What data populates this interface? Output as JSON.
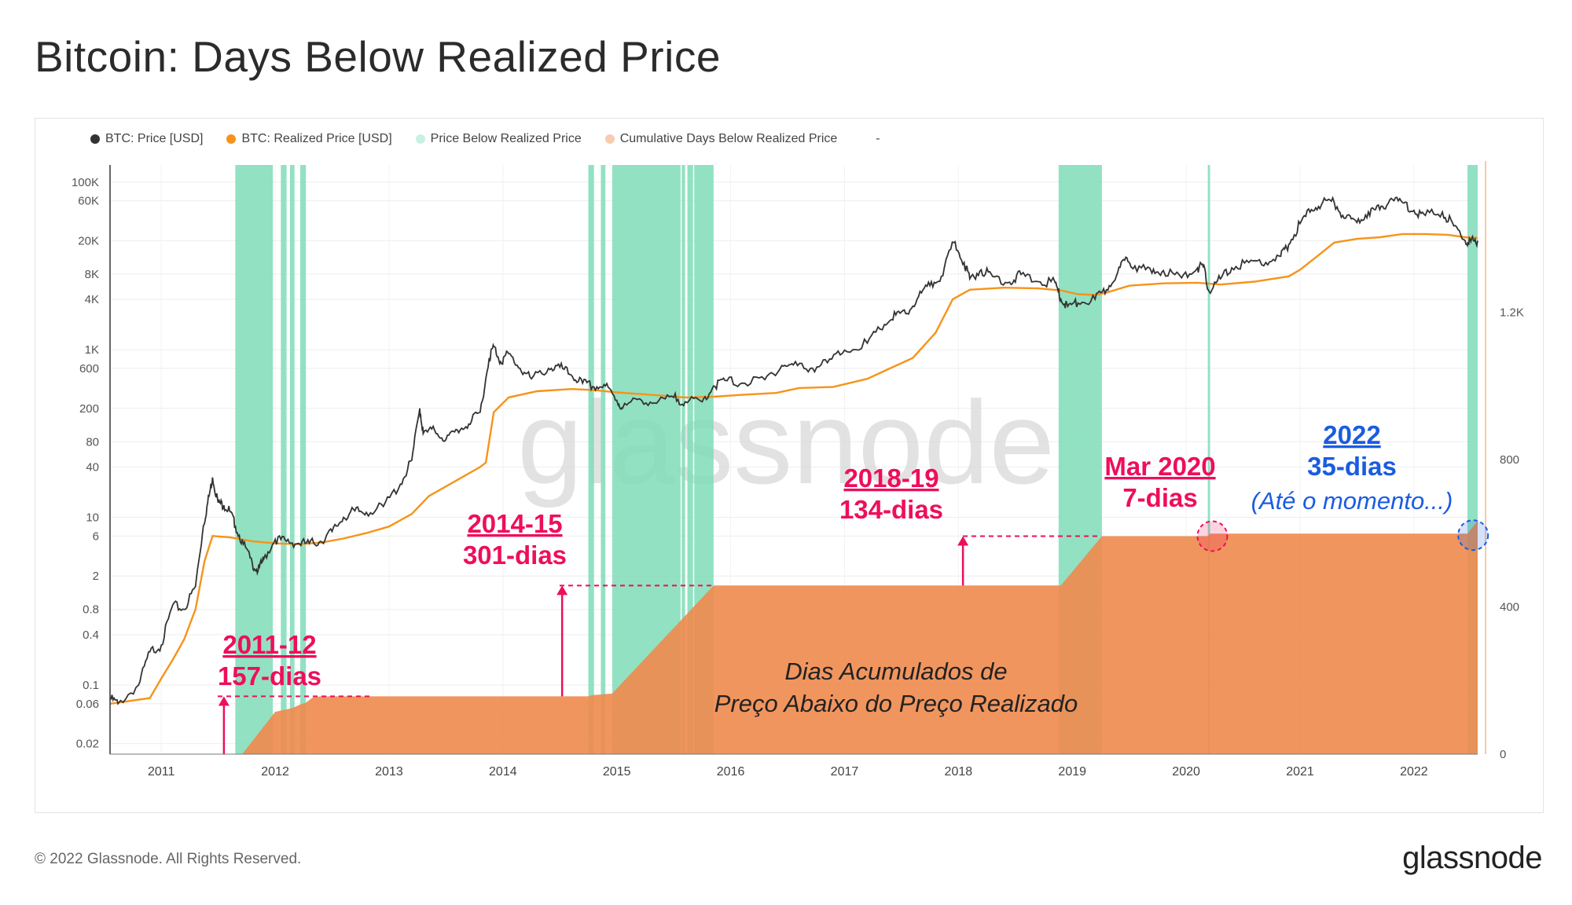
{
  "title": "Bitcoin: Days Below Realized Price",
  "legend": [
    {
      "label": "BTC: Price [USD]",
      "color": "#333333"
    },
    {
      "label": "BTC: Realized Price [USD]",
      "color": "#f7931a"
    },
    {
      "label": "Price Below Realized Price",
      "color": "#c9f0e2"
    },
    {
      "label": "Cumulative Days Below Realized Price",
      "color": "#f8cbb0"
    },
    {
      "label": "-",
      "color": "#ffffff"
    }
  ],
  "watermark": "glassnode",
  "footer": "© 2022 Glassnode. All Rights Reserved.",
  "brand": "glassnode",
  "colors": {
    "price": "#333333",
    "realized": "#f7931a",
    "below": "#7fdcb8",
    "cumulative": "#ef8a4d",
    "annotation": "#ee0e5c",
    "current": "#1a5ce0"
  },
  "chart_data": {
    "type": "line",
    "x_range": [
      2010.55,
      2022.56
    ],
    "x_ticks": [
      "2011",
      "2012",
      "2013",
      "2014",
      "2015",
      "2016",
      "2017",
      "2018",
      "2019",
      "2020",
      "2021",
      "2022"
    ],
    "y_left_scale": "log",
    "y_left_range": [
      0.015,
      160000
    ],
    "y_left_ticks": [
      {
        "v": 100000,
        "l": "100K"
      },
      {
        "v": 60000,
        "l": "60K"
      },
      {
        "v": 20000,
        "l": "20K"
      },
      {
        "v": 8000,
        "l": "8K"
      },
      {
        "v": 4000,
        "l": "4K"
      },
      {
        "v": 1000,
        "l": "1K"
      },
      {
        "v": 600,
        "l": "600"
      },
      {
        "v": 200,
        "l": "200"
      },
      {
        "v": 80,
        "l": "80"
      },
      {
        "v": 40,
        "l": "40"
      },
      {
        "v": 10,
        "l": "10"
      },
      {
        "v": 6,
        "l": "6"
      },
      {
        "v": 2,
        "l": "2"
      },
      {
        "v": 0.8,
        "l": "0.8"
      },
      {
        "v": 0.4,
        "l": "0.4"
      },
      {
        "v": 0.1,
        "l": "0.1"
      },
      {
        "v": 0.06,
        "l": "0.06"
      },
      {
        "v": 0.02,
        "l": "0.02"
      }
    ],
    "y_right_range": [
      0,
      1600
    ],
    "y_right_ticks": [
      {
        "v": 0,
        "l": "0"
      },
      {
        "v": 400,
        "l": "400"
      },
      {
        "v": 800,
        "l": "800"
      },
      {
        "v": 1200,
        "l": "1.2K"
      }
    ],
    "series": [
      {
        "name": "BTC: Price [USD]",
        "points": [
          [
            2010.55,
            0.07
          ],
          [
            2010.62,
            0.06
          ],
          [
            2010.8,
            0.1
          ],
          [
            2010.9,
            0.25
          ],
          [
            2011.0,
            0.3
          ],
          [
            2011.1,
            0.9
          ],
          [
            2011.2,
            0.8
          ],
          [
            2011.3,
            1.5
          ],
          [
            2011.37,
            8
          ],
          [
            2011.42,
            18
          ],
          [
            2011.45,
            30
          ],
          [
            2011.5,
            15
          ],
          [
            2011.55,
            14
          ],
          [
            2011.6,
            12
          ],
          [
            2011.65,
            8
          ],
          [
            2011.72,
            4.8
          ],
          [
            2011.8,
            2.8
          ],
          [
            2011.85,
            2.3
          ],
          [
            2011.9,
            3.2
          ],
          [
            2012.0,
            5.5
          ],
          [
            2012.1,
            5.2
          ],
          [
            2012.2,
            4.9
          ],
          [
            2012.3,
            4.9
          ],
          [
            2012.4,
            5.2
          ],
          [
            2012.5,
            6.8
          ],
          [
            2012.6,
            10
          ],
          [
            2012.7,
            12
          ],
          [
            2012.8,
            11.5
          ],
          [
            2012.95,
            13.5
          ],
          [
            2013.1,
            25
          ],
          [
            2013.2,
            48
          ],
          [
            2013.27,
            200
          ],
          [
            2013.3,
            100
          ],
          [
            2013.4,
            110
          ],
          [
            2013.5,
            85
          ],
          [
            2013.6,
            110
          ],
          [
            2013.7,
            130
          ],
          [
            2013.8,
            180
          ],
          [
            2013.88,
            800
          ],
          [
            2013.92,
            1100
          ],
          [
            2013.98,
            720
          ],
          [
            2014.05,
            900
          ],
          [
            2014.15,
            600
          ],
          [
            2014.25,
            450
          ],
          [
            2014.4,
            600
          ],
          [
            2014.5,
            620
          ],
          [
            2014.6,
            500
          ],
          [
            2014.7,
            400
          ],
          [
            2014.8,
            360
          ],
          [
            2014.9,
            370
          ],
          [
            2015.0,
            250
          ],
          [
            2015.05,
            200
          ],
          [
            2015.2,
            260
          ],
          [
            2015.35,
            230
          ],
          [
            2015.5,
            270
          ],
          [
            2015.6,
            240
          ],
          [
            2015.75,
            240
          ],
          [
            2015.85,
            370
          ],
          [
            2015.95,
            430
          ],
          [
            2016.1,
            400
          ],
          [
            2016.3,
            440
          ],
          [
            2016.45,
            650
          ],
          [
            2016.55,
            660
          ],
          [
            2016.7,
            600
          ],
          [
            2016.85,
            700
          ],
          [
            2017.0,
            990
          ],
          [
            2017.2,
            1200
          ],
          [
            2017.35,
            2000
          ],
          [
            2017.45,
            2600
          ],
          [
            2017.55,
            2700
          ],
          [
            2017.65,
            4300
          ],
          [
            2017.75,
            5800
          ],
          [
            2017.85,
            7500
          ],
          [
            2017.96,
            19000
          ],
          [
            2018.05,
            11000
          ],
          [
            2018.1,
            7000
          ],
          [
            2018.2,
            9000
          ],
          [
            2018.3,
            7500
          ],
          [
            2018.45,
            6400
          ],
          [
            2018.55,
            7900
          ],
          [
            2018.7,
            6500
          ],
          [
            2018.85,
            6300
          ],
          [
            2018.9,
            4000
          ],
          [
            2018.96,
            3300
          ],
          [
            2019.05,
            3600
          ],
          [
            2019.2,
            4000
          ],
          [
            2019.3,
            5200
          ],
          [
            2019.4,
            8500
          ],
          [
            2019.48,
            12500
          ],
          [
            2019.55,
            10000
          ],
          [
            2019.7,
            8200
          ],
          [
            2019.8,
            8800
          ],
          [
            2019.96,
            7200
          ],
          [
            2020.1,
            9500
          ],
          [
            2020.15,
            9800
          ],
          [
            2020.2,
            5000
          ],
          [
            2020.3,
            7000
          ],
          [
            2020.4,
            9500
          ],
          [
            2020.55,
            11000
          ],
          [
            2020.7,
            11000
          ],
          [
            2020.83,
            13000
          ],
          [
            2020.9,
            18000
          ],
          [
            2021.0,
            32000
          ],
          [
            2021.1,
            47000
          ],
          [
            2021.2,
            58000
          ],
          [
            2021.3,
            57000
          ],
          [
            2021.4,
            37000
          ],
          [
            2021.5,
            33000
          ],
          [
            2021.6,
            44000
          ],
          [
            2021.7,
            47000
          ],
          [
            2021.8,
            64000
          ],
          [
            2021.9,
            57000
          ],
          [
            2022.0,
            46000
          ],
          [
            2022.1,
            40000
          ],
          [
            2022.25,
            44000
          ],
          [
            2022.35,
            30000
          ],
          [
            2022.45,
            20000
          ],
          [
            2022.5,
            19500
          ],
          [
            2022.56,
            20000
          ]
        ]
      },
      {
        "name": "BTC: Realized Price [USD]",
        "points": [
          [
            2010.55,
            0.06
          ],
          [
            2010.9,
            0.07
          ],
          [
            2011.0,
            0.12
          ],
          [
            2011.1,
            0.2
          ],
          [
            2011.2,
            0.35
          ],
          [
            2011.3,
            0.8
          ],
          [
            2011.38,
            3
          ],
          [
            2011.45,
            6
          ],
          [
            2011.6,
            5.8
          ],
          [
            2011.8,
            5.2
          ],
          [
            2012.0,
            4.9
          ],
          [
            2012.2,
            4.8
          ],
          [
            2012.4,
            5.0
          ],
          [
            2012.6,
            5.6
          ],
          [
            2012.8,
            6.5
          ],
          [
            2013.0,
            7.8
          ],
          [
            2013.2,
            11
          ],
          [
            2013.35,
            18
          ],
          [
            2013.6,
            28
          ],
          [
            2013.8,
            40
          ],
          [
            2013.85,
            45
          ],
          [
            2013.92,
            180
          ],
          [
            2014.05,
            270
          ],
          [
            2014.3,
            320
          ],
          [
            2014.6,
            340
          ],
          [
            2014.8,
            330
          ],
          [
            2015.0,
            310
          ],
          [
            2015.3,
            290
          ],
          [
            2015.6,
            270
          ],
          [
            2015.85,
            275
          ],
          [
            2016.1,
            290
          ],
          [
            2016.4,
            305
          ],
          [
            2016.6,
            350
          ],
          [
            2016.9,
            360
          ],
          [
            2017.2,
            450
          ],
          [
            2017.4,
            600
          ],
          [
            2017.6,
            800
          ],
          [
            2017.8,
            1600
          ],
          [
            2017.95,
            4000
          ],
          [
            2018.1,
            5200
          ],
          [
            2018.4,
            5500
          ],
          [
            2018.7,
            5400
          ],
          [
            2018.9,
            5100
          ],
          [
            2019.05,
            4600
          ],
          [
            2019.2,
            4500
          ],
          [
            2019.3,
            4800
          ],
          [
            2019.5,
            5800
          ],
          [
            2019.8,
            6200
          ],
          [
            2020.1,
            6300
          ],
          [
            2020.3,
            6000
          ],
          [
            2020.6,
            6500
          ],
          [
            2020.9,
            7500
          ],
          [
            2021.0,
            9000
          ],
          [
            2021.15,
            13000
          ],
          [
            2021.3,
            19000
          ],
          [
            2021.5,
            21000
          ],
          [
            2021.7,
            22000
          ],
          [
            2021.9,
            24000
          ],
          [
            2022.1,
            24000
          ],
          [
            2022.3,
            23500
          ],
          [
            2022.45,
            22000
          ],
          [
            2022.56,
            21500
          ]
        ]
      },
      {
        "name": "Cumulative Days Below Realized Price",
        "points": [
          [
            2010.55,
            0
          ],
          [
            2011.71,
            0
          ],
          [
            2012.0,
            115
          ],
          [
            2012.15,
            125
          ],
          [
            2012.22,
            135
          ],
          [
            2012.27,
            140
          ],
          [
            2012.33,
            154
          ],
          [
            2012.4,
            157
          ],
          [
            2014.75,
            157
          ],
          [
            2014.78,
            160
          ],
          [
            2014.96,
            165
          ],
          [
            2015.85,
            458
          ],
          [
            2018.9,
            458
          ],
          [
            2019.26,
            592
          ],
          [
            2020.19,
            592
          ],
          [
            2020.21,
            599
          ],
          [
            2022.47,
            599
          ],
          [
            2022.56,
            634
          ]
        ]
      }
    ],
    "below_periods": [
      [
        2011.65,
        2011.98
      ],
      [
        2012.05,
        2012.1
      ],
      [
        2012.13,
        2012.17
      ],
      [
        2012.22,
        2012.27
      ],
      [
        2014.75,
        2014.8
      ],
      [
        2014.86,
        2014.9
      ],
      [
        2014.96,
        2015.56
      ],
      [
        2015.57,
        2015.6
      ],
      [
        2015.62,
        2015.67
      ],
      [
        2015.68,
        2015.85
      ],
      [
        2018.88,
        2019.26
      ],
      [
        2020.19,
        2020.21
      ],
      [
        2022.47,
        2022.56
      ]
    ],
    "annotations": [
      {
        "period": "2011-12",
        "days": "157-dias",
        "color": "annotation"
      },
      {
        "period": "2014-15",
        "days": "301-dias",
        "color": "annotation"
      },
      {
        "period": "2018-19",
        "days": "134-dias",
        "color": "annotation"
      },
      {
        "period": "Mar 2020",
        "days": "7-dias",
        "color": "annotation"
      },
      {
        "period": "2022",
        "days": "35-dias",
        "note": "(Até o momento...)",
        "color": "current"
      }
    ],
    "center_label_line1": "Dias Acumulados de",
    "center_label_line2": "Preço Abaixo do Preço Realizado"
  }
}
